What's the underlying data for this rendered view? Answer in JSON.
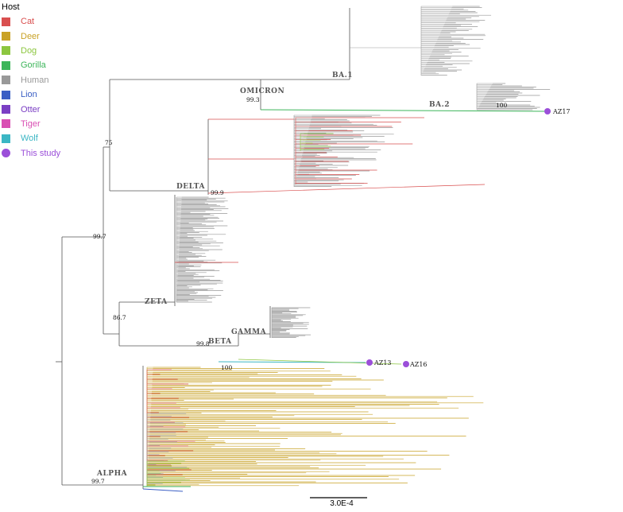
{
  "legend": {
    "title": "Host",
    "items": [
      {
        "label": "Cat",
        "color": "#d94f4f",
        "shape": "square"
      },
      {
        "label": "Deer",
        "color": "#c9a227",
        "shape": "square"
      },
      {
        "label": "Dog",
        "color": "#8cc63f",
        "shape": "square"
      },
      {
        "label": "Gorilla",
        "color": "#3cb55a",
        "shape": "square"
      },
      {
        "label": "Human",
        "color": "#999999",
        "shape": "square"
      },
      {
        "label": "Lion",
        "color": "#3b5fc4",
        "shape": "square"
      },
      {
        "label": "Otter",
        "color": "#7b3fc4",
        "shape": "square"
      },
      {
        "label": "Tiger",
        "color": "#d94fb3",
        "shape": "square"
      },
      {
        "label": "Wolf",
        "color": "#3bb6c4",
        "shape": "square"
      },
      {
        "label": "This study",
        "color": "#9b4fd9",
        "shape": "circle"
      }
    ]
  },
  "clades": {
    "omicron": "OMICRON",
    "ba1": "BA.1",
    "ba2": "BA.2",
    "delta": "DELTA",
    "zeta": "ZETA",
    "gamma": "GAMMA",
    "beta": "BETA",
    "alpha": "ALPHA"
  },
  "bootstrap": {
    "omicron": "99.3",
    "ba2": "100",
    "root_omicron_delta": "75",
    "delta": "99.9",
    "upper": "99.7",
    "gamma_beta": "86.7",
    "beta": "99.8",
    "az13_az16": "100",
    "alpha": "99.7"
  },
  "samples": {
    "az17": "AZ17",
    "az13": "AZ13",
    "az16": "AZ16"
  },
  "scale_bar": "3.0E-4",
  "colors": {
    "human": "#999999",
    "deer": "#c9a227",
    "cat": "#d94f4f",
    "dog": "#8cc63f",
    "gorilla": "#3cb55a",
    "lion": "#3b5fc4",
    "otter": "#7b3fc4",
    "this_study": "#9b4fd9",
    "backbone": "#555555"
  }
}
